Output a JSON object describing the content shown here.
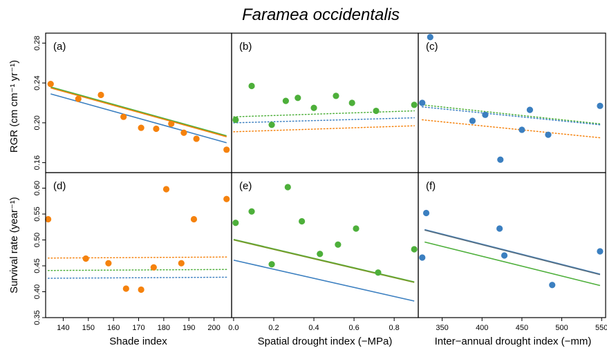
{
  "figure": {
    "title": "Faramea occidentalis",
    "row_labels": [
      "RGR (cm cm⁻¹ yr⁻¹)",
      "Survival rate (year⁻¹)"
    ],
    "col_labels": [
      "Shade index",
      "Spatial drought index (−MPa)",
      "Inter−annual drought index (−mm)"
    ]
  },
  "colors": {
    "orange": "#f5820d",
    "green": "#4daf3a",
    "blue": "#3b7fc0",
    "olive": "#7a9a2a",
    "slate": "#5a6f7f"
  },
  "chart_data": [
    {
      "id": "a",
      "label": "(a)",
      "type": "scatter",
      "xlabel": "",
      "ylabel": "RGR (cm cm⁻¹ yr⁻¹)",
      "xlim": [
        133,
        207
      ],
      "ylim": [
        0.15,
        0.29
      ],
      "xticks": [],
      "xtick_labels": [],
      "yticks": [
        0.16,
        0.2,
        0.24,
        0.28
      ],
      "ytick_labels": [
        "0.16",
        "0.20",
        "0.24",
        "0.28"
      ],
      "points": [
        {
          "x": 135,
          "y": 0.239
        },
        {
          "x": 146,
          "y": 0.224
        },
        {
          "x": 155,
          "y": 0.228
        },
        {
          "x": 164,
          "y": 0.206
        },
        {
          "x": 171,
          "y": 0.195
        },
        {
          "x": 177,
          "y": 0.194
        },
        {
          "x": 183,
          "y": 0.199
        },
        {
          "x": 188,
          "y": 0.19
        },
        {
          "x": 193,
          "y": 0.184
        },
        {
          "x": 205,
          "y": 0.173
        }
      ],
      "point_color": "orange",
      "lines": [
        {
          "color": "green",
          "style": "solid",
          "x": [
            135,
            205
          ],
          "y": [
            0.236,
            0.187
          ]
        },
        {
          "color": "orange",
          "style": "solid",
          "x": [
            135,
            205
          ],
          "y": [
            0.235,
            0.186
          ]
        },
        {
          "color": "blue",
          "style": "solid",
          "x": [
            135,
            205
          ],
          "y": [
            0.229,
            0.18
          ]
        }
      ]
    },
    {
      "id": "b",
      "label": "(b)",
      "type": "scatter",
      "xlabel": "",
      "ylabel": "",
      "xlim": [
        -0.01,
        0.92
      ],
      "ylim": [
        0.15,
        0.29
      ],
      "xticks": [],
      "xtick_labels": [],
      "yticks": [],
      "ytick_labels": [],
      "points": [
        {
          "x": 0.01,
          "y": 0.203
        },
        {
          "x": 0.09,
          "y": 0.237
        },
        {
          "x": 0.19,
          "y": 0.198
        },
        {
          "x": 0.26,
          "y": 0.222
        },
        {
          "x": 0.32,
          "y": 0.225
        },
        {
          "x": 0.4,
          "y": 0.215
        },
        {
          "x": 0.51,
          "y": 0.227
        },
        {
          "x": 0.59,
          "y": 0.22
        },
        {
          "x": 0.71,
          "y": 0.212
        },
        {
          "x": 0.9,
          "y": 0.218
        }
      ],
      "point_color": "green",
      "lines": [
        {
          "color": "green",
          "style": "dotted",
          "x": [
            0.0,
            0.9
          ],
          "y": [
            0.206,
            0.212
          ]
        },
        {
          "color": "blue",
          "style": "dotted",
          "x": [
            0.0,
            0.9
          ],
          "y": [
            0.2,
            0.205
          ]
        },
        {
          "color": "orange",
          "style": "dotted",
          "x": [
            0.0,
            0.9
          ],
          "y": [
            0.191,
            0.197
          ]
        }
      ]
    },
    {
      "id": "c",
      "label": "(c)",
      "type": "scatter",
      "xlabel": "",
      "ylabel": "",
      "xlim": [
        320,
        555
      ],
      "ylim": [
        0.15,
        0.29
      ],
      "xticks": [],
      "xtick_labels": [],
      "yticks": [],
      "ytick_labels": [],
      "points": [
        {
          "x": 325,
          "y": 0.22
        },
        {
          "x": 335,
          "y": 0.286
        },
        {
          "x": 388,
          "y": 0.202
        },
        {
          "x": 404,
          "y": 0.208
        },
        {
          "x": 423,
          "y": 0.163
        },
        {
          "x": 450,
          "y": 0.193
        },
        {
          "x": 460,
          "y": 0.213
        },
        {
          "x": 483,
          "y": 0.188
        },
        {
          "x": 548,
          "y": 0.217
        }
      ],
      "point_color": "blue",
      "lines": [
        {
          "color": "green",
          "style": "dotted",
          "x": [
            325,
            548
          ],
          "y": [
            0.218,
            0.199
          ]
        },
        {
          "color": "blue",
          "style": "dotted",
          "x": [
            325,
            548
          ],
          "y": [
            0.216,
            0.198
          ]
        },
        {
          "color": "orange",
          "style": "dotted",
          "x": [
            325,
            548
          ],
          "y": [
            0.203,
            0.185
          ]
        }
      ]
    },
    {
      "id": "d",
      "label": "(d)",
      "type": "scatter",
      "xlabel": "Shade index",
      "ylabel": "Survival rate (year⁻¹)",
      "xlim": [
        133,
        207
      ],
      "ylim": [
        0.35,
        0.63
      ],
      "xticks": [
        140,
        150,
        160,
        170,
        180,
        190,
        200
      ],
      "xtick_labels": [
        "140",
        "150",
        "160",
        "170",
        "180",
        "190",
        "200"
      ],
      "yticks": [
        0.35,
        0.4,
        0.45,
        0.5,
        0.55,
        0.6
      ],
      "ytick_labels": [
        "0.35",
        "0.40",
        "0.45",
        "0.50",
        "0.55",
        "0.60"
      ],
      "points": [
        {
          "x": 134,
          "y": 0.54
        },
        {
          "x": 149,
          "y": 0.464
        },
        {
          "x": 158,
          "y": 0.455
        },
        {
          "x": 165,
          "y": 0.406
        },
        {
          "x": 171,
          "y": 0.404
        },
        {
          "x": 176,
          "y": 0.447
        },
        {
          "x": 181,
          "y": 0.598
        },
        {
          "x": 187,
          "y": 0.455
        },
        {
          "x": 192,
          "y": 0.54
        },
        {
          "x": 205,
          "y": 0.579
        }
      ],
      "point_color": "orange",
      "lines": [
        {
          "color": "orange",
          "style": "dotted",
          "x": [
            134,
            205
          ],
          "y": [
            0.465,
            0.467
          ]
        },
        {
          "color": "green",
          "style": "dotted",
          "x": [
            134,
            205
          ],
          "y": [
            0.441,
            0.443
          ]
        },
        {
          "color": "blue",
          "style": "dotted",
          "x": [
            134,
            205
          ],
          "y": [
            0.426,
            0.428
          ]
        }
      ]
    },
    {
      "id": "e",
      "label": "(e)",
      "type": "scatter",
      "xlabel": "Spatial drought index (−MPa)",
      "ylabel": "",
      "xlim": [
        -0.01,
        0.92
      ],
      "ylim": [
        0.35,
        0.63
      ],
      "xticks": [
        0.0,
        0.2,
        0.4,
        0.6,
        0.8
      ],
      "xtick_labels": [
        "0.0",
        "0.2",
        "0.4",
        "0.6",
        "0.8"
      ],
      "yticks": [],
      "ytick_labels": [],
      "points": [
        {
          "x": 0.01,
          "y": 0.533
        },
        {
          "x": 0.09,
          "y": 0.555
        },
        {
          "x": 0.19,
          "y": 0.453
        },
        {
          "x": 0.27,
          "y": 0.602
        },
        {
          "x": 0.34,
          "y": 0.536
        },
        {
          "x": 0.43,
          "y": 0.473
        },
        {
          "x": 0.52,
          "y": 0.491
        },
        {
          "x": 0.61,
          "y": 0.522
        },
        {
          "x": 0.72,
          "y": 0.437
        },
        {
          "x": 0.9,
          "y": 0.482
        }
      ],
      "point_color": "green",
      "lines": [
        {
          "color": "green",
          "style": "solid",
          "x": [
            0.0,
            0.9
          ],
          "y": [
            0.501,
            0.419
          ]
        },
        {
          "color": "olive",
          "style": "solid",
          "x": [
            0.0,
            0.9
          ],
          "y": [
            0.5,
            0.418
          ]
        },
        {
          "color": "blue",
          "style": "solid",
          "x": [
            0.0,
            0.9
          ],
          "y": [
            0.461,
            0.382
          ]
        }
      ]
    },
    {
      "id": "f",
      "label": "(f)",
      "type": "scatter",
      "xlabel": "Inter−annual drought index (−mm)",
      "ylabel": "",
      "xlim": [
        320,
        555
      ],
      "ylim": [
        0.35,
        0.63
      ],
      "xticks": [
        350,
        400,
        450,
        500,
        550
      ],
      "xtick_labels": [
        "350",
        "400",
        "450",
        "500",
        "550"
      ],
      "yticks": [],
      "ytick_labels": [],
      "points": [
        {
          "x": 325,
          "y": 0.466
        },
        {
          "x": 330,
          "y": 0.552
        },
        {
          "x": 422,
          "y": 0.522
        },
        {
          "x": 428,
          "y": 0.47
        },
        {
          "x": 488,
          "y": 0.413
        },
        {
          "x": 548,
          "y": 0.478
        }
      ],
      "point_color": "blue",
      "lines": [
        {
          "color": "blue",
          "style": "solid",
          "x": [
            328,
            548
          ],
          "y": [
            0.52,
            0.434
          ]
        },
        {
          "color": "slate",
          "style": "solid",
          "x": [
            328,
            548
          ],
          "y": [
            0.519,
            0.433
          ]
        },
        {
          "color": "green",
          "style": "solid",
          "x": [
            328,
            548
          ],
          "y": [
            0.496,
            0.412
          ]
        }
      ]
    }
  ]
}
